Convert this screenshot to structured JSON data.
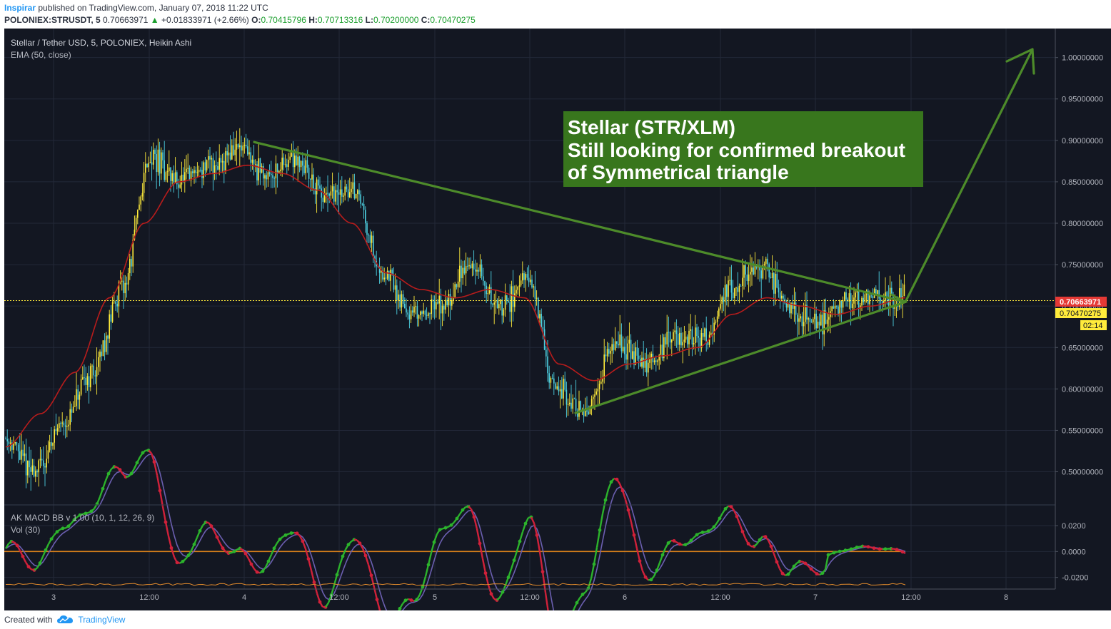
{
  "header": {
    "author": "Inspirar",
    "published_text": "published on TradingView.com, January 07, 2018 11:22 UTC",
    "symbol": "POLONIEX:STRUSDT, 5",
    "last": "0.70663971",
    "change_arrow": "▲",
    "change": "+0.01833971 (+2.66%)",
    "o_label": "O:",
    "o": "0.70415796",
    "h_label": "H:",
    "h": "0.70713316",
    "l_label": "L:",
    "l": "0.70200000",
    "c_label": "C:",
    "c": "0.70470275"
  },
  "legend": {
    "title": "Stellar / Tether USD, 5, POLONIEX, Heikin Ashi",
    "ema": "EMA (50, close)",
    "macd": "AK MACD BB v 1.00 (10, 1, 12, 26, 9)",
    "vol": "Vol (30)"
  },
  "annotation": {
    "line1": "Stellar (STR/XLM)",
    "line2": "Still looking for confirmed breakout",
    "line3": "of Symmetrical triangle"
  },
  "price_tags": {
    "last": "0.70663971",
    "close": "0.70470275",
    "countdown": "02:14"
  },
  "footer": {
    "created_with": "Created with",
    "brand": "TradingView",
    "logo_icon": "tradingview-cloud-icon"
  },
  "colors": {
    "background": "#131722",
    "bull": "#ffeb3b",
    "bear": "#4dd0e1",
    "ema": "#b71c1c",
    "triangle": "#4d8b2a",
    "annotation_bg": "#38761d",
    "macd_green": "#2cb32c",
    "macd_red": "#d0213a",
    "signal": "#6b5fb0",
    "zero_line": "#d9801a",
    "current_price": "#ffeb3b"
  },
  "chart_data": {
    "type": "candlestick",
    "chart_style": "Heikin Ashi",
    "x_ticks": [
      "3",
      "12:00",
      "4",
      "12:00",
      "5",
      "12:00",
      "6",
      "12:00",
      "7",
      "12:00",
      "8"
    ],
    "y_ticks": [
      "1.00000000",
      "0.95000000",
      "0.90000000",
      "0.85000000",
      "0.80000000",
      "0.75000000",
      "0.70000000",
      "0.65000000",
      "0.60000000",
      "0.55000000",
      "0.50000000"
    ],
    "ylim": [
      0.46,
      1.035
    ],
    "price_path": [
      [
        "3",
        0.54
      ],
      [
        "3",
        0.5
      ],
      [
        "3",
        0.56
      ],
      [
        "3",
        0.62
      ],
      [
        "12:00",
        0.72
      ],
      [
        "12:00",
        0.88
      ],
      [
        "12:00",
        0.85
      ],
      [
        "4",
        0.87
      ],
      [
        "4",
        0.89
      ],
      [
        "4",
        0.86
      ],
      [
        "4",
        0.88
      ],
      [
        "12:00",
        0.83
      ],
      [
        "12:00",
        0.84
      ],
      [
        "12:00",
        0.74
      ],
      [
        "5",
        0.69
      ],
      [
        "5",
        0.7
      ],
      [
        "5",
        0.75
      ],
      [
        "5",
        0.7
      ],
      [
        "12:00",
        0.73
      ],
      [
        "12:00",
        0.6
      ],
      [
        "12:00",
        0.57
      ],
      [
        "6",
        0.66
      ],
      [
        "6",
        0.63
      ],
      [
        "6",
        0.66
      ],
      [
        "6",
        0.66
      ],
      [
        "12:00",
        0.72
      ],
      [
        "12:00",
        0.75
      ],
      [
        "12:00",
        0.7
      ],
      [
        "7",
        0.68
      ],
      [
        "7",
        0.71
      ],
      [
        "7",
        0.71
      ],
      [
        "7",
        0.71
      ]
    ],
    "ema_path": [
      [
        "3",
        0.53
      ],
      [
        "3",
        0.57
      ],
      [
        "3",
        0.62
      ],
      [
        "12:00",
        0.71
      ],
      [
        "12:00",
        0.8
      ],
      [
        "12:00",
        0.85
      ],
      [
        "4",
        0.86
      ],
      [
        "4",
        0.87
      ],
      [
        "4",
        0.86
      ],
      [
        "12:00",
        0.84
      ],
      [
        "12:00",
        0.8
      ],
      [
        "12:00",
        0.74
      ],
      [
        "5",
        0.72
      ],
      [
        "5",
        0.71
      ],
      [
        "5",
        0.72
      ],
      [
        "12:00",
        0.71
      ],
      [
        "12:00",
        0.63
      ],
      [
        "12:00",
        0.61
      ],
      [
        "6",
        0.63
      ],
      [
        "6",
        0.64
      ],
      [
        "6",
        0.65
      ],
      [
        "12:00",
        0.69
      ],
      [
        "12:00",
        0.71
      ],
      [
        "12:00",
        0.7
      ],
      [
        "7",
        0.69
      ],
      [
        "7",
        0.7
      ],
      [
        "7",
        0.71
      ]
    ],
    "current_price": 0.70663971,
    "close_price": 0.70470275,
    "triangle": {
      "upper": [
        [
          0.898,
          "4"
        ],
        [
          0.705,
          "12:00"
        ]
      ],
      "lower": [
        [
          0.571,
          "12:00"
        ],
        [
          0.705,
          "12:00"
        ]
      ],
      "breakout_arrow": [
        [
          0.705,
          "12:00"
        ],
        [
          1.01,
          "8"
        ]
      ]
    },
    "macd": {
      "y_ticks": [
        "0.0200",
        "0.0000",
        "-0.0200"
      ],
      "ylim": [
        -0.029,
        0.036
      ],
      "zero": 0.0
    }
  }
}
